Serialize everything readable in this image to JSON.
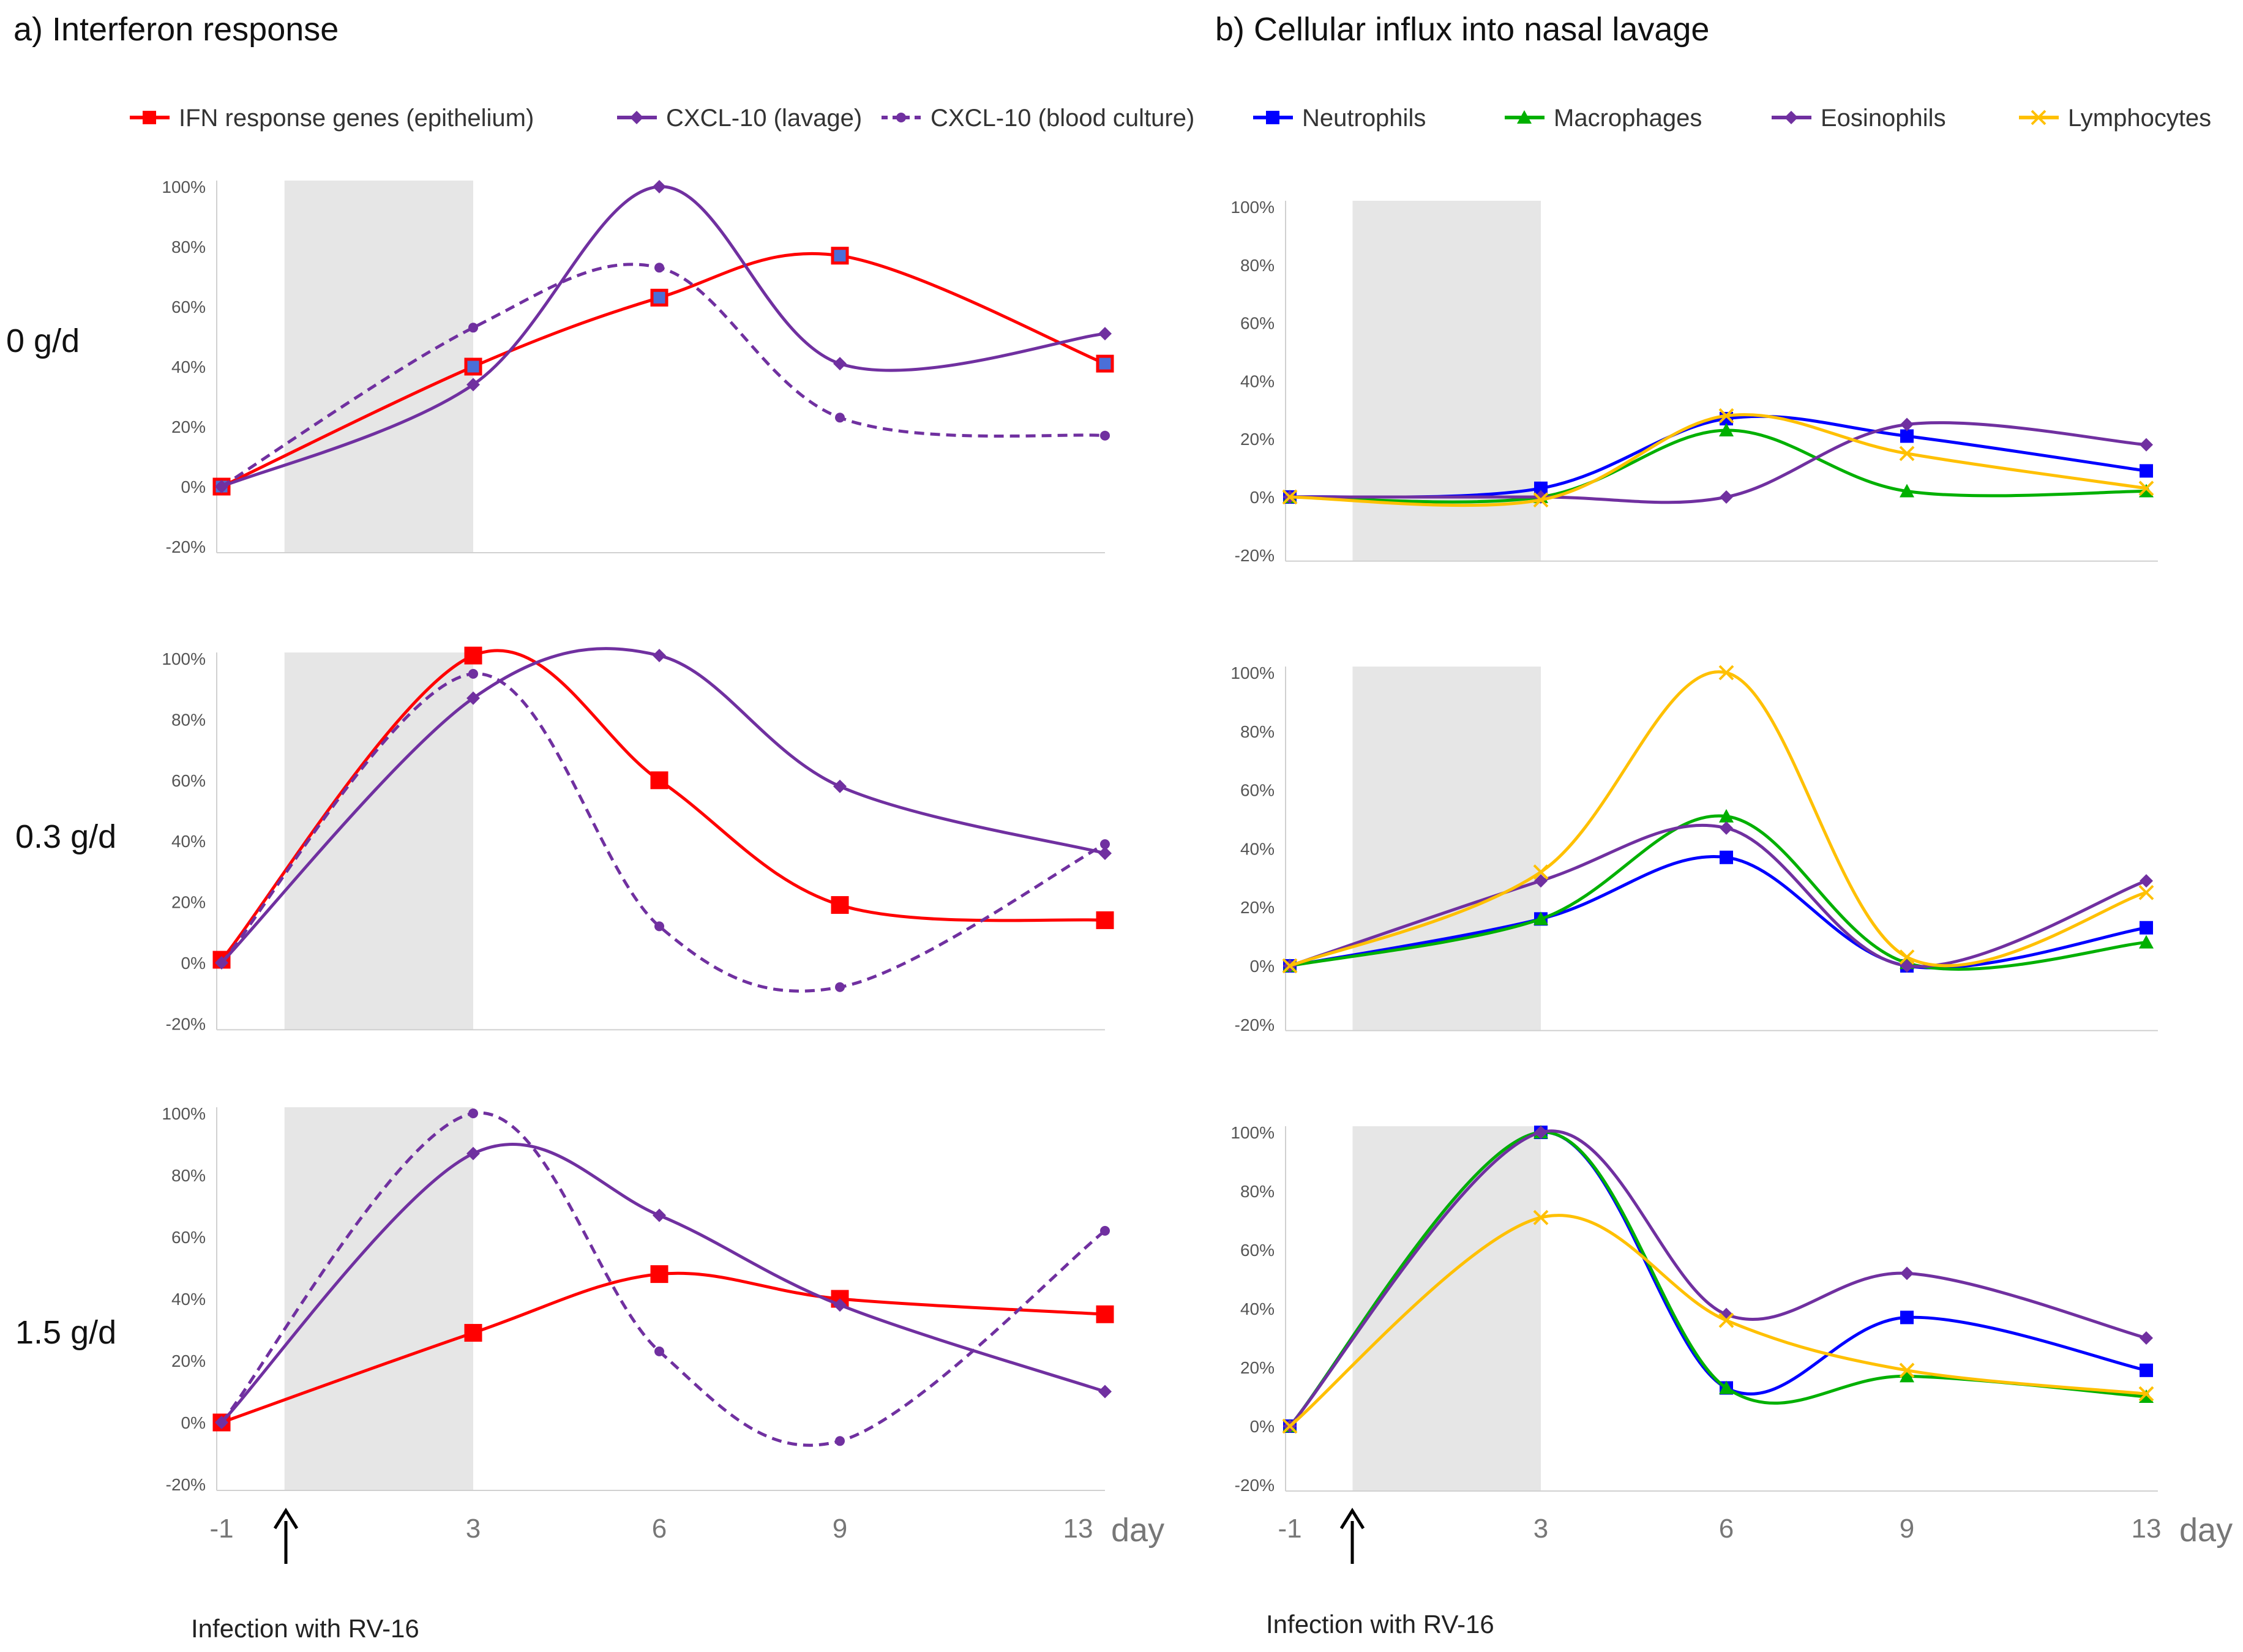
{
  "panel_a": {
    "title": "a) Interferon response"
  },
  "panel_b": {
    "title": "b) Cellular influx into nasal lavage"
  },
  "row_labels": [
    "0 g/d",
    "0.3 g/d",
    "1.5 g/d"
  ],
  "x_axis": {
    "ticks": [
      "-1",
      "3",
      "6",
      "9",
      "13"
    ],
    "unit": "day"
  },
  "y_axis": {
    "ticks": [
      "100%",
      "80%",
      "60%",
      "40%",
      "20%",
      "0%",
      "-20%"
    ]
  },
  "annotation": {
    "text": "Infection with RV-16"
  },
  "legend": [
    {
      "key": "ifn",
      "label": "IFN response genes (epithelium)",
      "color": "#ff0000",
      "marker": "square",
      "dashed": false
    },
    {
      "key": "cxcl_lavage",
      "label": "CXCL-10 (lavage)",
      "color": "#7030a0",
      "marker": "diamond",
      "dashed": false
    },
    {
      "key": "cxcl_blood",
      "label": "CXCL-10 (blood culture)",
      "color": "#7030a0",
      "marker": "circle",
      "dashed": true
    },
    {
      "key": "neut",
      "label": "Neutrophils",
      "color": "#0000ff",
      "marker": "square",
      "dashed": false
    },
    {
      "key": "macro",
      "label": "Macrophages",
      "color": "#00b000",
      "marker": "triangle",
      "dashed": false
    },
    {
      "key": "eos",
      "label": "Eosinophils",
      "color": "#7030a0",
      "marker": "diamond",
      "dashed": false
    },
    {
      "key": "lymph",
      "label": "Lymphocytes",
      "color": "#ffc000",
      "marker": "x",
      "dashed": false
    }
  ],
  "chart_data": [
    {
      "type": "line",
      "panel": "a",
      "row": "0 g/d",
      "x": [
        -1,
        3,
        6,
        9,
        13
      ],
      "ylim": [
        -20,
        100
      ],
      "shaded_days": [
        0,
        3
      ],
      "series": [
        {
          "key": "ifn",
          "name": "IFN response genes (epithelium)",
          "values": [
            0,
            40,
            63,
            77,
            41
          ]
        },
        {
          "key": "cxcl_lavage",
          "name": "CXCL-10 (lavage)",
          "values": [
            0,
            34,
            100,
            41,
            51
          ]
        },
        {
          "key": "cxcl_blood",
          "name": "CXCL-10 (blood culture)",
          "values": [
            0,
            53,
            73,
            23,
            17
          ]
        }
      ]
    },
    {
      "type": "line",
      "panel": "a",
      "row": "0.3 g/d",
      "x": [
        -1,
        3,
        6,
        9,
        13
      ],
      "ylim": [
        -20,
        100
      ],
      "shaded_days": [
        0,
        3
      ],
      "series": [
        {
          "key": "ifn",
          "name": "IFN response genes (epithelium)",
          "values": [
            1,
            101,
            60,
            19,
            14
          ]
        },
        {
          "key": "cxcl_lavage",
          "name": "CXCL-10 (lavage)",
          "values": [
            0,
            87,
            101,
            58,
            36
          ]
        },
        {
          "key": "cxcl_blood",
          "name": "CXCL-10 (blood culture)",
          "values": [
            0,
            95,
            12,
            -8,
            39
          ]
        }
      ]
    },
    {
      "type": "line",
      "panel": "a",
      "row": "1.5 g/d",
      "x": [
        -1,
        3,
        6,
        9,
        13
      ],
      "ylim": [
        -20,
        100
      ],
      "shaded_days": [
        0,
        3
      ],
      "series": [
        {
          "key": "ifn",
          "name": "IFN response genes (epithelium)",
          "values": [
            0,
            29,
            48,
            40,
            35
          ]
        },
        {
          "key": "cxcl_lavage",
          "name": "CXCL-10 (lavage)",
          "values": [
            0,
            87,
            67,
            38,
            10
          ]
        },
        {
          "key": "cxcl_blood",
          "name": "CXCL-10 (blood culture)",
          "values": [
            0,
            100,
            23,
            -6,
            62
          ]
        }
      ]
    },
    {
      "type": "line",
      "panel": "b",
      "row": "0 g/d",
      "x": [
        -1,
        3,
        6,
        9,
        13
      ],
      "ylim": [
        -20,
        100
      ],
      "shaded_days": [
        0,
        3
      ],
      "series": [
        {
          "key": "neut",
          "name": "Neutrophils",
          "values": [
            0,
            3,
            27,
            21,
            9
          ]
        },
        {
          "key": "macro",
          "name": "Macrophages",
          "values": [
            0,
            0,
            23,
            2,
            2
          ]
        },
        {
          "key": "eos",
          "name": "Eosinophils",
          "values": [
            0,
            0,
            0,
            25,
            18
          ]
        },
        {
          "key": "lymph",
          "name": "Lymphocytes",
          "values": [
            0,
            -1,
            28,
            15,
            3
          ]
        }
      ]
    },
    {
      "type": "line",
      "panel": "b",
      "row": "0.3 g/d",
      "x": [
        -1,
        3,
        6,
        9,
        13
      ],
      "ylim": [
        -20,
        100
      ],
      "shaded_days": [
        0,
        3
      ],
      "series": [
        {
          "key": "neut",
          "name": "Neutrophils",
          "values": [
            0,
            16,
            37,
            0,
            13
          ]
        },
        {
          "key": "macro",
          "name": "Macrophages",
          "values": [
            0,
            16,
            51,
            1,
            8
          ]
        },
        {
          "key": "eos",
          "name": "Eosinophils",
          "values": [
            0,
            29,
            47,
            0,
            29
          ]
        },
        {
          "key": "lymph",
          "name": "Lymphocytes",
          "values": [
            0,
            32,
            100,
            3,
            25
          ]
        }
      ]
    },
    {
      "type": "line",
      "panel": "b",
      "row": "1.5 g/d",
      "x": [
        -1,
        3,
        6,
        9,
        13
      ],
      "ylim": [
        -20,
        100
      ],
      "shaded_days": [
        0,
        3
      ],
      "series": [
        {
          "key": "neut",
          "name": "Neutrophils",
          "values": [
            0,
            100,
            13,
            37,
            19
          ]
        },
        {
          "key": "macro",
          "name": "Macrophages",
          "values": [
            0,
            100,
            13,
            17,
            10
          ]
        },
        {
          "key": "eos",
          "name": "Eosinophils",
          "values": [
            0,
            100,
            38,
            52,
            30
          ]
        },
        {
          "key": "lymph",
          "name": "Lymphocytes",
          "values": [
            0,
            71,
            36,
            19,
            11
          ]
        }
      ]
    }
  ]
}
